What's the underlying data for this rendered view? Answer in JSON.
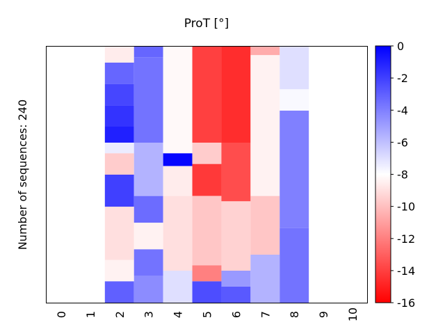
{
  "chart_data": {
    "type": "heatmap",
    "title": "ProT [°]",
    "ylabel": "Number of sequences: 240",
    "xlabel": "",
    "n_rows": 240,
    "x_tick_labels": [
      "0",
      "1",
      "2",
      "3",
      "4",
      "5",
      "6",
      "7",
      "8",
      "9",
      "10"
    ],
    "colorbar": {
      "min": -16,
      "max": 0,
      "tick_labels": [
        "0",
        "-2",
        "-4",
        "-6",
        "-8",
        "-10",
        "-12",
        "-14",
        "-16"
      ],
      "tick_values": [
        0,
        -2,
        -4,
        -6,
        -8,
        -10,
        -12,
        -14,
        -16
      ],
      "colormap": "bwr",
      "colors": {
        "blue": "#0000ff",
        "white": "#ffffff",
        "red": "#ff0000"
      }
    },
    "grid": false,
    "columns": [
      {
        "x": 2,
        "segments": [
          {
            "rows": [
              0,
              15
            ],
            "value": -8.6
          },
          {
            "rows": [
              15,
              35
            ],
            "value": -3.2
          },
          {
            "rows": [
              35,
              55
            ],
            "value": -2.2
          },
          {
            "rows": [
              55,
              75
            ],
            "value": -1.6
          },
          {
            "rows": [
              75,
              90
            ],
            "value": -1.0
          },
          {
            "rows": [
              90,
              100
            ],
            "value": -7.4
          },
          {
            "rows": [
              100,
              120
            ],
            "value": -9.6
          },
          {
            "rows": [
              120,
              150
            ],
            "value": -2.0
          },
          {
            "rows": [
              150,
              200
            ],
            "value": -9.0
          },
          {
            "rows": [
              200,
              220
            ],
            "value": -8.4
          },
          {
            "rows": [
              220,
              240
            ],
            "value": -3.0
          }
        ]
      },
      {
        "x": 3,
        "segments": [
          {
            "rows": [
              0,
              10
            ],
            "value": -3.2
          },
          {
            "rows": [
              10,
              90
            ],
            "value": -3.6
          },
          {
            "rows": [
              90,
              140
            ],
            "value": -5.6
          },
          {
            "rows": [
              140,
              165
            ],
            "value": -3.4
          },
          {
            "rows": [
              165,
              190
            ],
            "value": -8.4
          },
          {
            "rows": [
              190,
              215
            ],
            "value": -3.6
          },
          {
            "rows": [
              215,
              240
            ],
            "value": -4.4
          }
        ]
      },
      {
        "x": 4,
        "segments": [
          {
            "rows": [
              0,
              100
            ],
            "value": -8.2
          },
          {
            "rows": [
              100,
              112
            ],
            "value": -0.2
          },
          {
            "rows": [
              112,
              140
            ],
            "value": -8.6
          },
          {
            "rows": [
              140,
              210
            ],
            "value": -9.0
          },
          {
            "rows": [
              210,
              240
            ],
            "value": -7.0
          }
        ]
      },
      {
        "x": 5,
        "segments": [
          {
            "rows": [
              0,
              90
            ],
            "value": -14.0
          },
          {
            "rows": [
              90,
              110
            ],
            "value": -9.6
          },
          {
            "rows": [
              110,
              140
            ],
            "value": -14.2
          },
          {
            "rows": [
              140,
              205
            ],
            "value": -9.8
          },
          {
            "rows": [
              205,
              220
            ],
            "value": -12.0
          },
          {
            "rows": [
              220,
              240
            ],
            "value": -2.4
          }
        ]
      },
      {
        "x": 6,
        "segments": [
          {
            "rows": [
              0,
              90
            ],
            "value": -14.6
          },
          {
            "rows": [
              90,
              145
            ],
            "value": -13.6
          },
          {
            "rows": [
              145,
              210
            ],
            "value": -9.4
          },
          {
            "rows": [
              210,
              225
            ],
            "value": -4.8
          },
          {
            "rows": [
              225,
              240
            ],
            "value": -2.8
          }
        ]
      },
      {
        "x": 7,
        "segments": [
          {
            "rows": [
              0,
              8
            ],
            "value": -10.6
          },
          {
            "rows": [
              8,
              140
            ],
            "value": -8.4
          },
          {
            "rows": [
              140,
              195
            ],
            "value": -9.8
          },
          {
            "rows": [
              195,
              240
            ],
            "value": -5.6
          }
        ]
      },
      {
        "x": 8,
        "segments": [
          {
            "rows": [
              0,
              40
            ],
            "value": -7.0
          },
          {
            "rows": [
              40,
              60
            ],
            "value": -7.8
          },
          {
            "rows": [
              60,
              170
            ],
            "value": -4.0
          },
          {
            "rows": [
              170,
              240
            ],
            "value": -3.6
          }
        ]
      }
    ]
  }
}
